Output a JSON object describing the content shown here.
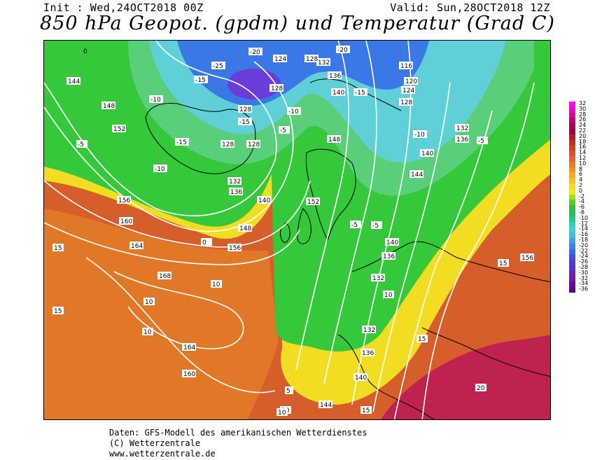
{
  "header": {
    "init_label": "Init : Wed,24OCT2018 00Z",
    "valid_label": "Valid: Sun,28OCT2018 12Z",
    "title": "850 hPa Geopot. (gpdm) und Temperatur (Grad C)"
  },
  "map": {
    "fields": [
      "850 hPa geopotential (gpdm)",
      "850 hPa temperature (Grad C)"
    ],
    "colors": {
      "ocean_warm": "#e07828",
      "land_warm": "#d55e2a",
      "hot": "#c0224e",
      "yellow": "#f2dd22",
      "green": "#34c83a",
      "cold_green": "#59cf7a",
      "cyan": "#5fcfd8",
      "blue": "#3a78e8",
      "purple": "#6a3cd8",
      "isoline": "#ffffff",
      "coastline": "#000000"
    },
    "geopotential_labels": [
      "144",
      "148",
      "152",
      "156",
      "160",
      "164",
      "168",
      "160",
      "164",
      "128",
      "128",
      "128",
      "132",
      "136",
      "140",
      "148",
      "156",
      "124",
      "128",
      "136",
      "140",
      "132",
      "116",
      "120",
      "124",
      "128",
      "132",
      "136",
      "140",
      "144",
      "148",
      "152",
      "140",
      "136",
      "132",
      "132",
      "136",
      "140",
      "144",
      "128",
      "156"
    ],
    "temperature_labels": [
      "0",
      "-5",
      "-10",
      "-15",
      "-20",
      "-25",
      "-15",
      "-10",
      "-5",
      "0",
      "10",
      "15",
      "10",
      "15",
      "10",
      "10",
      "15",
      "20",
      "15",
      "10",
      "5",
      "-5",
      "-10",
      "-15",
      "-20",
      "-5",
      "-5",
      "-10",
      "-15",
      "10",
      "15"
    ]
  },
  "legend": {
    "labels": [
      "32",
      "30",
      "28",
      "26",
      "24",
      "22",
      "20",
      "18",
      "16",
      "14",
      "12",
      "10",
      "8",
      "6",
      "4",
      "2",
      "0",
      "-2",
      "-4",
      "-6",
      "-8",
      "-10",
      "-12",
      "-14",
      "-16",
      "-18",
      "-20",
      "-22",
      "-24",
      "-26",
      "-28",
      "-30",
      "-32",
      "-34",
      "-36"
    ],
    "colors": [
      "#ff00ff",
      "#ee00cc",
      "#d8009a",
      "#c20070",
      "#b00050",
      "#a30035",
      "#b8162c",
      "#c82a2a",
      "#d63c28",
      "#e05026",
      "#e86424",
      "#ee7a22",
      "#f29220",
      "#f6aa1e",
      "#f8c21c",
      "#f6d81c",
      "#f0e81e",
      "#a8e018",
      "#58d020",
      "#2cc43a",
      "#20c060",
      "#22c88a",
      "#30d0b0",
      "#3ad0d8",
      "#3cbde8",
      "#3aa0ec",
      "#3a84ea",
      "#3a68e8",
      "#3c50e0",
      "#4a3cd8",
      "#5a2ed0",
      "#6a22c4",
      "#7816b4",
      "#6c0aa0",
      "#5a0888"
    ]
  },
  "footer": {
    "line1": "Daten: GFS-Modell des amerikanischen Wetterdienstes",
    "line2": "(C) Wetterzentrale",
    "line3": "www.wetterzentrale.de"
  }
}
